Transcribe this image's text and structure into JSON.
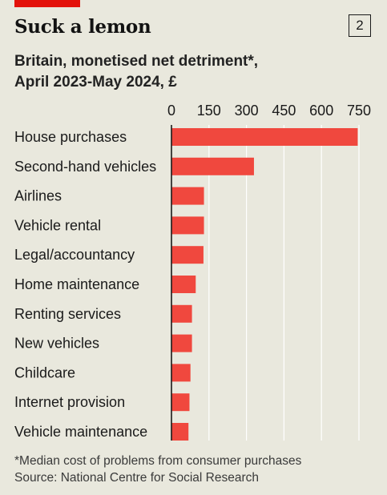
{
  "header": {
    "title": "Suck a lemon",
    "chart_number": "2",
    "subtitle_line1": "Britain, monetised net detriment*,",
    "subtitle_line2": "April 2023-May 2024, £"
  },
  "footer": {
    "note": "*Median cost of problems from consumer purchases",
    "source": "Source: National Centre for Social Research"
  },
  "colors": {
    "bar": "#f0483e",
    "grid": "#ffffff",
    "axis": "#1a1a1a",
    "accent": "#e3120b",
    "background": "#e9e8dd"
  },
  "chart_data": {
    "type": "bar",
    "orientation": "horizontal",
    "categories": [
      "House purchases",
      "Second-hand vehicles",
      "Airlines",
      "Vehicle rental",
      "Legal/accountancy",
      "Home maintenance",
      "Renting services",
      "New vehicles",
      "Childcare",
      "Internet provision",
      "Vehicle maintenance"
    ],
    "values": [
      745,
      330,
      130,
      130,
      128,
      97,
      82,
      82,
      76,
      72,
      68
    ],
    "xticks": [
      0,
      150,
      300,
      450,
      600,
      750
    ],
    "xlim": [
      0,
      750
    ],
    "grid": true,
    "title": "Suck a lemon",
    "xlabel": "",
    "ylabel": ""
  }
}
